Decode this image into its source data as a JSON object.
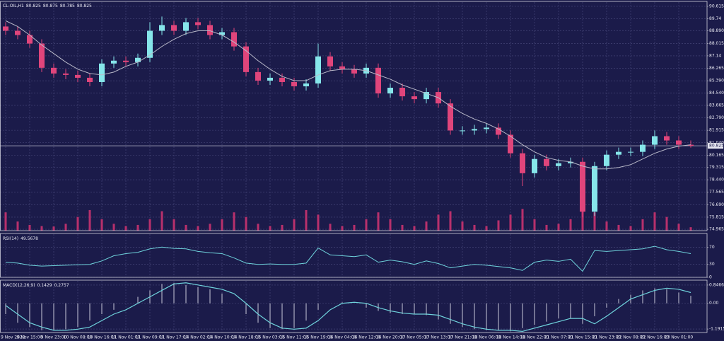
{
  "chart_data": [
    {
      "type": "candlestick",
      "symbol": "CL-OIL,H1",
      "header_values": [
        80.825,
        80.875,
        80.785,
        80.825
      ],
      "categories": [
        "9 Nov 2022",
        null,
        "9 Nov 15:00",
        null,
        "9 Nov 23:00",
        null,
        "10 Nov 08:00",
        null,
        "10 Nov 16:00",
        null,
        "11 Nov 01:00",
        null,
        "11 Nov 09:00",
        null,
        "11 Nov 17:00",
        null,
        "14 Nov 02:00",
        null,
        "14 Nov 10:00",
        null,
        "14 Nov 18:00",
        null,
        "15 Nov 03:00",
        null,
        "15 Nov 11:00",
        null,
        "15 Nov 19:00",
        null,
        "16 Nov 04:00",
        null,
        "16 Nov 12:00",
        null,
        "16 Nov 20:00",
        null,
        "17 Nov 05:00",
        null,
        "17 Nov 13:00",
        null,
        "17 Nov 21:00",
        null,
        "18 Nov 06:00",
        null,
        "18 Nov 14:00",
        null,
        "18 Nov 22:00",
        null,
        "21 Nov 07:00",
        null,
        "21 Nov 15:00",
        null,
        "21 Nov 23:00",
        null,
        "22 Nov 08:00",
        null,
        "22 Nov 16:00",
        null,
        "23 Nov 01:00",
        null
      ],
      "open": [
        89.2,
        88.9,
        88.6,
        88.0,
        86.3,
        85.9,
        85.8,
        85.6,
        85.3,
        86.6,
        86.8,
        86.7,
        87.0,
        88.9,
        89.3,
        88.9,
        89.5,
        89.3,
        88.6,
        88.8,
        87.8,
        86.0,
        85.4,
        85.6,
        85.3,
        85.0,
        85.2,
        87.1,
        86.4,
        86.2,
        85.9,
        86.3,
        84.5,
        84.9,
        84.3,
        84.1,
        84.6,
        83.8,
        81.9,
        81.9,
        82.0,
        82.1,
        81.6,
        80.3,
        78.9,
        79.9,
        79.4,
        79.6,
        79.7,
        76.2,
        79.4,
        80.2,
        80.4,
        80.4,
        80.9,
        81.5,
        81.2,
        80.9
      ],
      "high": [
        89.5,
        89.2,
        88.9,
        88.3,
        86.6,
        86.2,
        86.1,
        85.9,
        86.9,
        87.1,
        87.1,
        87.3,
        89.5,
        89.9,
        89.6,
        89.8,
        89.8,
        89.6,
        89.1,
        89.1,
        88.1,
        86.3,
        85.9,
        85.9,
        85.6,
        85.5,
        88.0,
        87.4,
        86.7,
        86.5,
        86.6,
        86.6,
        85.2,
        85.2,
        84.6,
        84.9,
        84.9,
        84.1,
        82.2,
        82.3,
        82.4,
        82.4,
        81.9,
        80.6,
        80.2,
        80.2,
        79.9,
        80.0,
        80.0,
        79.7,
        80.5,
        80.7,
        80.7,
        81.2,
        81.9,
        81.8,
        81.5,
        81.2
      ],
      "low": [
        88.6,
        88.3,
        87.7,
        86.0,
        85.6,
        85.5,
        85.3,
        85.0,
        85.0,
        86.3,
        86.4,
        86.4,
        86.7,
        88.6,
        88.6,
        88.6,
        89.0,
        88.3,
        88.3,
        87.5,
        85.7,
        85.1,
        85.1,
        85.0,
        84.7,
        84.7,
        84.9,
        86.1,
        85.9,
        85.6,
        85.6,
        84.2,
        84.2,
        84.0,
        83.8,
        83.8,
        83.5,
        81.6,
        81.6,
        81.6,
        81.7,
        81.3,
        80.0,
        78.0,
        78.6,
        79.1,
        79.1,
        79.3,
        75.8,
        75.9,
        79.1,
        79.9,
        80.1,
        80.1,
        80.6,
        80.9,
        80.6,
        80.7
      ],
      "close": [
        88.9,
        88.6,
        88.0,
        86.3,
        85.9,
        85.8,
        85.6,
        85.3,
        86.6,
        86.8,
        86.7,
        87.0,
        88.9,
        89.3,
        88.9,
        89.5,
        89.3,
        88.6,
        88.8,
        87.8,
        86.0,
        85.4,
        85.6,
        85.3,
        85.0,
        85.2,
        87.1,
        86.4,
        86.2,
        85.9,
        86.3,
        84.5,
        84.9,
        84.3,
        84.1,
        84.6,
        83.8,
        81.9,
        81.9,
        82.0,
        82.1,
        81.6,
        80.3,
        78.9,
        79.9,
        79.4,
        79.6,
        79.7,
        76.2,
        79.4,
        80.2,
        80.4,
        80.4,
        80.9,
        81.5,
        81.2,
        80.9,
        80.825
      ],
      "up_color": "#86e6ea",
      "down_color": "#e0457b",
      "ma": {
        "color": "#b9b9c9",
        "values": [
          89.6,
          89.2,
          88.6,
          87.9,
          87.3,
          86.7,
          86.2,
          85.9,
          85.8,
          86.0,
          86.4,
          86.7,
          87.2,
          87.8,
          88.3,
          88.7,
          88.9,
          88.9,
          88.6,
          88.1,
          87.5,
          86.8,
          86.2,
          85.7,
          85.4,
          85.4,
          85.8,
          86.1,
          86.2,
          86.2,
          86.1,
          85.8,
          85.5,
          85.1,
          84.8,
          84.5,
          84.2,
          83.6,
          83.1,
          82.7,
          82.4,
          82.0,
          81.5,
          80.9,
          80.4,
          80.0,
          79.8,
          79.7,
          79.4,
          79.2,
          79.2,
          79.3,
          79.5,
          79.9,
          80.3,
          80.6,
          80.8,
          80.9
        ]
      },
      "volume": {
        "color": "#b8306c",
        "lim": [
          0,
          10000
        ],
        "values": [
          800,
          400,
          250,
          200,
          180,
          300,
          600,
          900,
          500,
          300,
          200,
          250,
          500,
          850,
          500,
          250,
          200,
          300,
          500,
          800,
          600,
          300,
          200,
          250,
          500,
          900,
          700,
          300,
          200,
          250,
          500,
          800,
          500,
          250,
          200,
          400,
          700,
          850,
          400,
          250,
          200,
          450,
          700,
          950,
          500,
          250,
          300,
          500,
          1000,
          800,
          400,
          250,
          200,
          500,
          800,
          600,
          300,
          150
        ]
      },
      "last_price": 80.825,
      "ylim": [
        74.87,
        90.91
      ],
      "yticks": [
        90.615,
        89.74,
        {
          "value": 88.89,
          "label": "88.890"
        },
        88.015,
        87.14,
        86.265,
        {
          "value": 85.39,
          "label": "85.390"
        },
        {
          "value": 84.54,
          "label": "84.540"
        },
        83.665,
        {
          "value": 82.79,
          "label": "82.790"
        },
        81.915,
        {
          "value": 81.04,
          "label": "81.040"
        },
        80.165,
        79.315,
        {
          "value": 78.44,
          "label": "78.440"
        },
        77.565,
        {
          "value": 76.69,
          "label": "76.690"
        },
        75.815,
        74.965
      ],
      "grid": true
    },
    {
      "type": "line",
      "name": "RSI(14)",
      "header_values": [
        49.5678
      ],
      "color": "#6fd3dc",
      "values": [
        35,
        33,
        28,
        26,
        27,
        28,
        29,
        30,
        38,
        50,
        55,
        58,
        66,
        70,
        67,
        66,
        60,
        57,
        55,
        45,
        33,
        30,
        31,
        30,
        30,
        33,
        68,
        52,
        50,
        48,
        52,
        35,
        40,
        36,
        30,
        38,
        32,
        22,
        26,
        30,
        28,
        25,
        22,
        16,
        35,
        40,
        37,
        42,
        14,
        62,
        60,
        62,
        64,
        66,
        72,
        64,
        60,
        55
      ],
      "ylim": [
        0,
        100
      ],
      "yticks": [
        70,
        30,
        0
      ],
      "grid": true
    },
    {
      "type": "bar",
      "name": "MACD(12,26,9)",
      "header_values": [
        0.1429,
        0.2757
      ],
      "color": "#c9c9d9",
      "values": [
        -0.5,
        -0.9,
        -1.1,
        -1.25,
        -1.25,
        -1.2,
        -1.1,
        -0.8,
        -0.5,
        -0.3,
        0.0,
        0.3,
        0.6,
        0.9,
        0.95,
        0.85,
        0.75,
        0.65,
        0.45,
        0.0,
        -0.5,
        -0.9,
        -1.15,
        -1.2,
        -1.15,
        -0.8,
        -0.3,
        0.0,
        0.05,
        0.0,
        -0.2,
        -0.35,
        -0.45,
        -0.5,
        -0.5,
        -0.55,
        -0.75,
        -0.95,
        -1.1,
        -1.2,
        -1.25,
        -1.25,
        -1.3,
        -1.15,
        -1.0,
        -0.85,
        -0.7,
        -0.7,
        -0.95,
        -0.6,
        -0.2,
        0.2,
        0.4,
        0.6,
        0.7,
        0.65,
        0.5,
        0.35
      ],
      "signal": {
        "color": "#6fd3dc",
        "values": [
          -0.1,
          -0.5,
          -0.9,
          -1.1,
          -1.25,
          -1.25,
          -1.2,
          -1.1,
          -0.8,
          -0.5,
          -0.3,
          0.0,
          0.3,
          0.6,
          0.9,
          0.95,
          0.85,
          0.75,
          0.65,
          0.45,
          0.0,
          -0.5,
          -0.9,
          -1.15,
          -1.2,
          -1.15,
          -0.8,
          -0.3,
          0.0,
          0.05,
          0.0,
          -0.2,
          -0.35,
          -0.45,
          -0.5,
          -0.5,
          -0.55,
          -0.75,
          -0.95,
          -1.1,
          -1.2,
          -1.25,
          -1.25,
          -1.3,
          -1.15,
          -1.0,
          -0.85,
          -0.7,
          -0.7,
          -0.95,
          -0.6,
          -0.2,
          0.2,
          0.4,
          0.6,
          0.7,
          0.65,
          0.5
        ]
      },
      "ylim": [
        -1.353,
        1.041
      ],
      "yticks": [
        0.8466,
        {
          "value": 0,
          "label": "0.00"
        },
        -1.1915
      ],
      "grid": true
    }
  ]
}
